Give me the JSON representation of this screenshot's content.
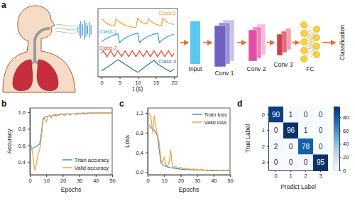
{
  "chart_data": [
    {
      "type": "line",
      "title": "a",
      "xlabel": "t (s)",
      "x": [
        0,
        0.5,
        1,
        1.5,
        2,
        2.5,
        3,
        3.5,
        4,
        4.5,
        5,
        5.5,
        6,
        6.5,
        7,
        7.5,
        8,
        8.5,
        9,
        9.5,
        10,
        10.5,
        11,
        11.5,
        12,
        12.5,
        13,
        13.5,
        14,
        14.5,
        15,
        15.5,
        16,
        16.5,
        17,
        17.5,
        18,
        18.5,
        19,
        19.5,
        20
      ],
      "xlim": [
        -1,
        21
      ],
      "xticks": [
        0,
        5,
        10,
        15,
        20
      ],
      "ylim": [
        0,
        4.6
      ],
      "tick_labels": "x",
      "series": [
        {
          "name": "Class 0",
          "color": "#f0a22e",
          "values": [
            3.95,
            3.8,
            3.68,
            3.6,
            3.53,
            3.48,
            3.44,
            3.4,
            3.9,
            3.78,
            3.68,
            3.6,
            3.54,
            3.48,
            3.44,
            3.4,
            3.37,
            3.35,
            3.33,
            3.32,
            3.95,
            3.8,
            3.7,
            3.63,
            3.58,
            3.55,
            3.9,
            3.78,
            3.68,
            3.6,
            3.54,
            3.5,
            3.47,
            3.45,
            3.95,
            3.8,
            3.7,
            3.63,
            3.58,
            3.55,
            3.53
          ]
        },
        {
          "name": "Class 1",
          "color": "#2f9be0",
          "values": [
            2.35,
            2.45,
            2.53,
            2.6,
            2.66,
            2.72,
            2.77,
            2.82,
            2.86,
            2.9,
            2.3,
            2.42,
            2.52,
            2.6,
            2.67,
            2.73,
            2.78,
            2.83,
            2.87,
            2.9,
            2.93,
            2.3,
            2.42,
            2.52,
            2.6,
            2.67,
            2.73,
            2.78,
            2.83,
            2.87,
            2.9,
            2.93,
            2.3,
            2.42,
            2.52,
            2.6,
            2.67,
            2.73,
            2.78,
            2.83,
            2.87
          ]
        },
        {
          "name": "Class 2",
          "color": "#e34a33",
          "values": [
            1.55,
            1.75,
            1.55,
            1.35,
            1.55,
            1.75,
            1.55,
            1.35,
            1.55,
            1.75,
            1.55,
            1.35,
            1.55,
            1.75,
            1.55,
            1.35,
            1.55,
            1.75,
            1.55,
            1.35,
            1.55,
            1.75,
            1.55,
            1.35,
            1.55,
            1.75,
            1.55,
            1.35,
            1.55,
            1.75,
            1.55,
            1.35,
            1.55,
            1.75,
            1.55,
            1.35,
            1.55,
            1.75,
            1.55,
            1.35,
            1.55
          ]
        },
        {
          "name": "Class 3",
          "color": "#2d6cb3",
          "values": [
            0.4,
            0.48,
            0.56,
            0.64,
            0.72,
            0.8,
            0.88,
            0.97,
            1.06,
            1.15,
            1.08,
            1.0,
            0.92,
            0.84,
            0.76,
            0.68,
            0.6,
            0.52,
            0.44,
            0.37,
            0.3,
            0.39,
            0.48,
            0.57,
            0.66,
            0.75,
            0.84,
            0.93,
            1.02,
            1.1,
            0.98,
            0.86,
            0.78,
            0.7,
            0.62,
            0.55,
            0.48,
            0.42,
            0.35,
            0.42,
            0.5
          ]
        }
      ]
    },
    {
      "type": "line",
      "title": "b",
      "xlabel": "Epochs",
      "ylabel": "Accuracy",
      "x": [
        1,
        2,
        3,
        4,
        5,
        6,
        7,
        8,
        9,
        10,
        11,
        12,
        13,
        14,
        15,
        16,
        17,
        18,
        19,
        20,
        21,
        22,
        23,
        24,
        25,
        26,
        27,
        28,
        29,
        30,
        31,
        32,
        33,
        34,
        35,
        36,
        37,
        38,
        39,
        40,
        41,
        42,
        43,
        44,
        45,
        46,
        47,
        48,
        49,
        50
      ],
      "xlim": [
        0,
        50
      ],
      "xticks": [
        0,
        10,
        20,
        30,
        40,
        50
      ],
      "ylim": [
        0.25,
        1.05
      ],
      "yticks": [
        0.4,
        0.6,
        0.8,
        {
          "value": 1,
          "label": "1.0"
        }
      ],
      "legend": "lower right",
      "series": [
        {
          "name": "Train accuracy",
          "color": "#3a8fd9",
          "values": [
            0.55,
            0.57,
            0.58,
            0.59,
            0.6,
            0.62,
            0.75,
            0.92,
            0.94,
            0.95,
            0.95,
            0.96,
            0.95,
            0.96,
            0.97,
            0.96,
            0.97,
            0.97,
            0.98,
            0.97,
            0.98,
            0.98,
            0.98,
            0.97,
            0.98,
            0.98,
            0.98,
            0.98,
            0.99,
            0.98,
            0.98,
            0.99,
            0.99,
            0.98,
            0.99,
            0.99,
            0.99,
            0.99,
            0.99,
            0.99,
            0.99,
            0.99,
            0.99,
            0.99,
            0.99,
            0.99,
            0.99,
            0.99,
            0.99,
            0.99
          ]
        },
        {
          "name": "Valid accuracy",
          "color": "#f5a03a",
          "values": [
            0.6,
            0.45,
            0.3,
            0.38,
            0.5,
            0.55,
            0.7,
            0.9,
            0.93,
            0.88,
            0.95,
            0.96,
            0.93,
            0.97,
            0.96,
            0.95,
            0.97,
            0.96,
            0.98,
            0.97,
            0.96,
            0.97,
            0.98,
            0.98,
            0.97,
            0.98,
            0.98,
            0.97,
            0.98,
            0.98,
            0.99,
            0.98,
            0.98,
            0.99,
            0.98,
            0.99,
            0.99,
            0.98,
            0.99,
            0.99,
            0.99,
            0.99,
            0.99,
            0.99,
            0.99,
            0.99,
            0.99,
            0.99,
            0.99,
            0.99
          ]
        }
      ]
    },
    {
      "type": "line",
      "title": "c",
      "xlabel": "Epochs",
      "ylabel": "Loss",
      "x": [
        1,
        2,
        3,
        4,
        5,
        6,
        7,
        8,
        9,
        10,
        11,
        12,
        13,
        14,
        15,
        16,
        17,
        18,
        19,
        20,
        21,
        22,
        23,
        24,
        25,
        26,
        27,
        28,
        29,
        30,
        31,
        32,
        33,
        34,
        35,
        36,
        37,
        38,
        39,
        40,
        41,
        42,
        43,
        44,
        45,
        46,
        47,
        48,
        49,
        50
      ],
      "xlim": [
        0,
        50
      ],
      "xticks": [
        0,
        10,
        20,
        30,
        40,
        50
      ],
      "ylim": [
        -0.05,
        1.3
      ],
      "yticks": [
        {
          "value": 0,
          "label": "0.0"
        },
        0.4,
        0.8,
        1.2
      ],
      "legend": "upper right",
      "series": [
        {
          "name": "Train loss",
          "color": "#3a8fd9",
          "values": [
            0.95,
            0.9,
            0.88,
            0.85,
            0.8,
            0.72,
            0.45,
            0.2,
            0.15,
            0.13,
            0.12,
            0.11,
            0.1,
            0.09,
            0.09,
            0.08,
            0.08,
            0.07,
            0.07,
            0.06,
            0.06,
            0.06,
            0.05,
            0.06,
            0.05,
            0.05,
            0.05,
            0.05,
            0.04,
            0.05,
            0.04,
            0.04,
            0.04,
            0.04,
            0.04,
            0.03,
            0.04,
            0.03,
            0.03,
            0.03,
            0.03,
            0.03,
            0.03,
            0.03,
            0.03,
            0.03,
            0.03,
            0.03,
            0.03,
            0.03
          ]
        },
        {
          "name": "Valid loss",
          "color": "#f5a03a",
          "values": [
            1.2,
            1.1,
            0.8,
            1.15,
            0.9,
            0.75,
            0.6,
            0.25,
            0.2,
            0.3,
            0.15,
            0.12,
            0.2,
            0.45,
            0.12,
            0.1,
            0.12,
            0.09,
            0.08,
            0.1,
            0.08,
            0.07,
            0.08,
            0.06,
            0.07,
            0.06,
            0.06,
            0.07,
            0.05,
            0.06,
            0.05,
            0.05,
            0.06,
            0.05,
            0.04,
            0.05,
            0.04,
            0.04,
            0.05,
            0.04,
            0.04,
            0.04,
            0.04,
            0.03,
            0.04,
            0.04,
            0.03,
            0.04,
            0.04,
            0.04
          ]
        }
      ]
    },
    {
      "type": "heatmap",
      "title": "d",
      "xlabel": "Predict Label",
      "ylabel": "True Label",
      "x": [
        0,
        1,
        2,
        3
      ],
      "y": [
        0,
        1,
        2,
        3
      ],
      "cells": [
        [
          90,
          1,
          0,
          0
        ],
        [
          0,
          96,
          1,
          0
        ],
        [
          2,
          0,
          78,
          0
        ],
        [
          0,
          0,
          0,
          95
        ]
      ],
      "data_labels": true,
      "colorbar_range": [
        0,
        96
      ],
      "colorbar_ticks": [
        0,
        20,
        40,
        60,
        80
      ]
    }
  ],
  "diagram": {
    "layers": [
      "Input",
      "Conv 1",
      "Conv 2",
      "Conv 3",
      "FC"
    ],
    "output": "Classification"
  }
}
